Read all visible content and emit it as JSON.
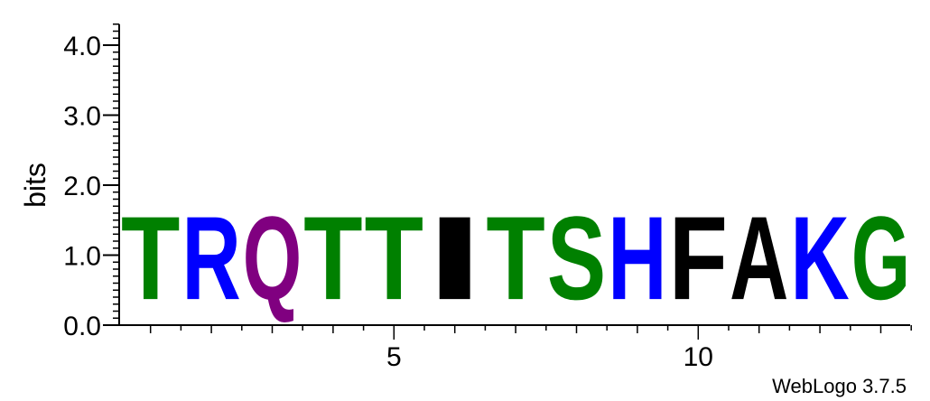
{
  "chart_data": {
    "type": "sequence-logo",
    "title": "",
    "xlabel": "",
    "ylabel": "bits",
    "ylim": [
      0,
      4.3
    ],
    "y_ticks": [
      "0.0",
      "1.0",
      "2.0",
      "3.0",
      "4.0"
    ],
    "x_ticks": [
      "5",
      "10"
    ],
    "x_tick_positions": [
      5,
      10
    ],
    "xlim": [
      0.5,
      13.5
    ],
    "positions": [
      {
        "position": 1,
        "letter": "T",
        "bits": 1.9,
        "color": "#008000"
      },
      {
        "position": 2,
        "letter": "R",
        "bits": 1.9,
        "color": "#0000ff"
      },
      {
        "position": 3,
        "letter": "Q",
        "bits": 1.9,
        "color": "#800080"
      },
      {
        "position": 4,
        "letter": "T",
        "bits": 1.9,
        "color": "#008000"
      },
      {
        "position": 5,
        "letter": "T",
        "bits": 1.9,
        "color": "#008000"
      },
      {
        "position": 6,
        "letter": "I",
        "bits": 1.9,
        "color": "#000000"
      },
      {
        "position": 7,
        "letter": "T",
        "bits": 1.9,
        "color": "#008000"
      },
      {
        "position": 8,
        "letter": "S",
        "bits": 1.9,
        "color": "#008000"
      },
      {
        "position": 9,
        "letter": "H",
        "bits": 1.9,
        "color": "#0000ff"
      },
      {
        "position": 10,
        "letter": "F",
        "bits": 1.9,
        "color": "#000000"
      },
      {
        "position": 11,
        "letter": "A",
        "bits": 1.9,
        "color": "#000000"
      },
      {
        "position": 12,
        "letter": "K",
        "bits": 1.9,
        "color": "#0000ff"
      },
      {
        "position": 13,
        "letter": "G",
        "bits": 1.9,
        "color": "#008000"
      }
    ]
  },
  "credit": "WebLogo 3.7.5"
}
